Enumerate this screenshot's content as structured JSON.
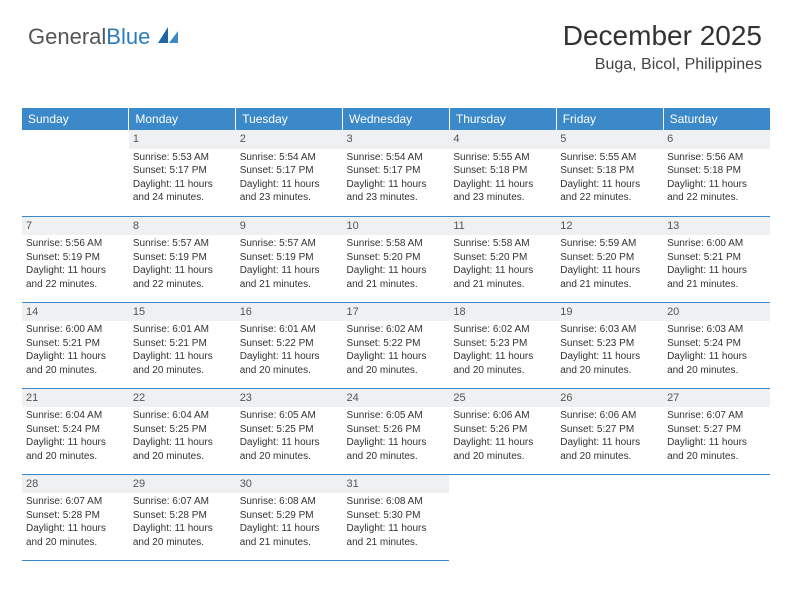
{
  "logo": {
    "part1": "General",
    "part2": "Blue"
  },
  "header": {
    "month": "December 2025",
    "location": "Buga, Bicol, Philippines"
  },
  "colors": {
    "header_bg": "#3b89c9",
    "header_text": "#ffffff",
    "daynum_bg": "#eef0f1",
    "border": "#3b89c9",
    "logo_gray": "#555555",
    "logo_blue": "#2b7bbf"
  },
  "weekdays": [
    "Sunday",
    "Monday",
    "Tuesday",
    "Wednesday",
    "Thursday",
    "Friday",
    "Saturday"
  ],
  "weeks": [
    [
      null,
      {
        "d": "1",
        "sr": "5:53 AM",
        "ss": "5:17 PM",
        "dl": "11 hours and 24 minutes."
      },
      {
        "d": "2",
        "sr": "5:54 AM",
        "ss": "5:17 PM",
        "dl": "11 hours and 23 minutes."
      },
      {
        "d": "3",
        "sr": "5:54 AM",
        "ss": "5:17 PM",
        "dl": "11 hours and 23 minutes."
      },
      {
        "d": "4",
        "sr": "5:55 AM",
        "ss": "5:18 PM",
        "dl": "11 hours and 23 minutes."
      },
      {
        "d": "5",
        "sr": "5:55 AM",
        "ss": "5:18 PM",
        "dl": "11 hours and 22 minutes."
      },
      {
        "d": "6",
        "sr": "5:56 AM",
        "ss": "5:18 PM",
        "dl": "11 hours and 22 minutes."
      }
    ],
    [
      {
        "d": "7",
        "sr": "5:56 AM",
        "ss": "5:19 PM",
        "dl": "11 hours and 22 minutes."
      },
      {
        "d": "8",
        "sr": "5:57 AM",
        "ss": "5:19 PM",
        "dl": "11 hours and 22 minutes."
      },
      {
        "d": "9",
        "sr": "5:57 AM",
        "ss": "5:19 PM",
        "dl": "11 hours and 21 minutes."
      },
      {
        "d": "10",
        "sr": "5:58 AM",
        "ss": "5:20 PM",
        "dl": "11 hours and 21 minutes."
      },
      {
        "d": "11",
        "sr": "5:58 AM",
        "ss": "5:20 PM",
        "dl": "11 hours and 21 minutes."
      },
      {
        "d": "12",
        "sr": "5:59 AM",
        "ss": "5:20 PM",
        "dl": "11 hours and 21 minutes."
      },
      {
        "d": "13",
        "sr": "6:00 AM",
        "ss": "5:21 PM",
        "dl": "11 hours and 21 minutes."
      }
    ],
    [
      {
        "d": "14",
        "sr": "6:00 AM",
        "ss": "5:21 PM",
        "dl": "11 hours and 20 minutes."
      },
      {
        "d": "15",
        "sr": "6:01 AM",
        "ss": "5:21 PM",
        "dl": "11 hours and 20 minutes."
      },
      {
        "d": "16",
        "sr": "6:01 AM",
        "ss": "5:22 PM",
        "dl": "11 hours and 20 minutes."
      },
      {
        "d": "17",
        "sr": "6:02 AM",
        "ss": "5:22 PM",
        "dl": "11 hours and 20 minutes."
      },
      {
        "d": "18",
        "sr": "6:02 AM",
        "ss": "5:23 PM",
        "dl": "11 hours and 20 minutes."
      },
      {
        "d": "19",
        "sr": "6:03 AM",
        "ss": "5:23 PM",
        "dl": "11 hours and 20 minutes."
      },
      {
        "d": "20",
        "sr": "6:03 AM",
        "ss": "5:24 PM",
        "dl": "11 hours and 20 minutes."
      }
    ],
    [
      {
        "d": "21",
        "sr": "6:04 AM",
        "ss": "5:24 PM",
        "dl": "11 hours and 20 minutes."
      },
      {
        "d": "22",
        "sr": "6:04 AM",
        "ss": "5:25 PM",
        "dl": "11 hours and 20 minutes."
      },
      {
        "d": "23",
        "sr": "6:05 AM",
        "ss": "5:25 PM",
        "dl": "11 hours and 20 minutes."
      },
      {
        "d": "24",
        "sr": "6:05 AM",
        "ss": "5:26 PM",
        "dl": "11 hours and 20 minutes."
      },
      {
        "d": "25",
        "sr": "6:06 AM",
        "ss": "5:26 PM",
        "dl": "11 hours and 20 minutes."
      },
      {
        "d": "26",
        "sr": "6:06 AM",
        "ss": "5:27 PM",
        "dl": "11 hours and 20 minutes."
      },
      {
        "d": "27",
        "sr": "6:07 AM",
        "ss": "5:27 PM",
        "dl": "11 hours and 20 minutes."
      }
    ],
    [
      {
        "d": "28",
        "sr": "6:07 AM",
        "ss": "5:28 PM",
        "dl": "11 hours and 20 minutes."
      },
      {
        "d": "29",
        "sr": "6:07 AM",
        "ss": "5:28 PM",
        "dl": "11 hours and 20 minutes."
      },
      {
        "d": "30",
        "sr": "6:08 AM",
        "ss": "5:29 PM",
        "dl": "11 hours and 21 minutes."
      },
      {
        "d": "31",
        "sr": "6:08 AM",
        "ss": "5:30 PM",
        "dl": "11 hours and 21 minutes."
      },
      null,
      null,
      null
    ]
  ],
  "labels": {
    "sunrise": "Sunrise:",
    "sunset": "Sunset:",
    "daylight": "Daylight:"
  }
}
